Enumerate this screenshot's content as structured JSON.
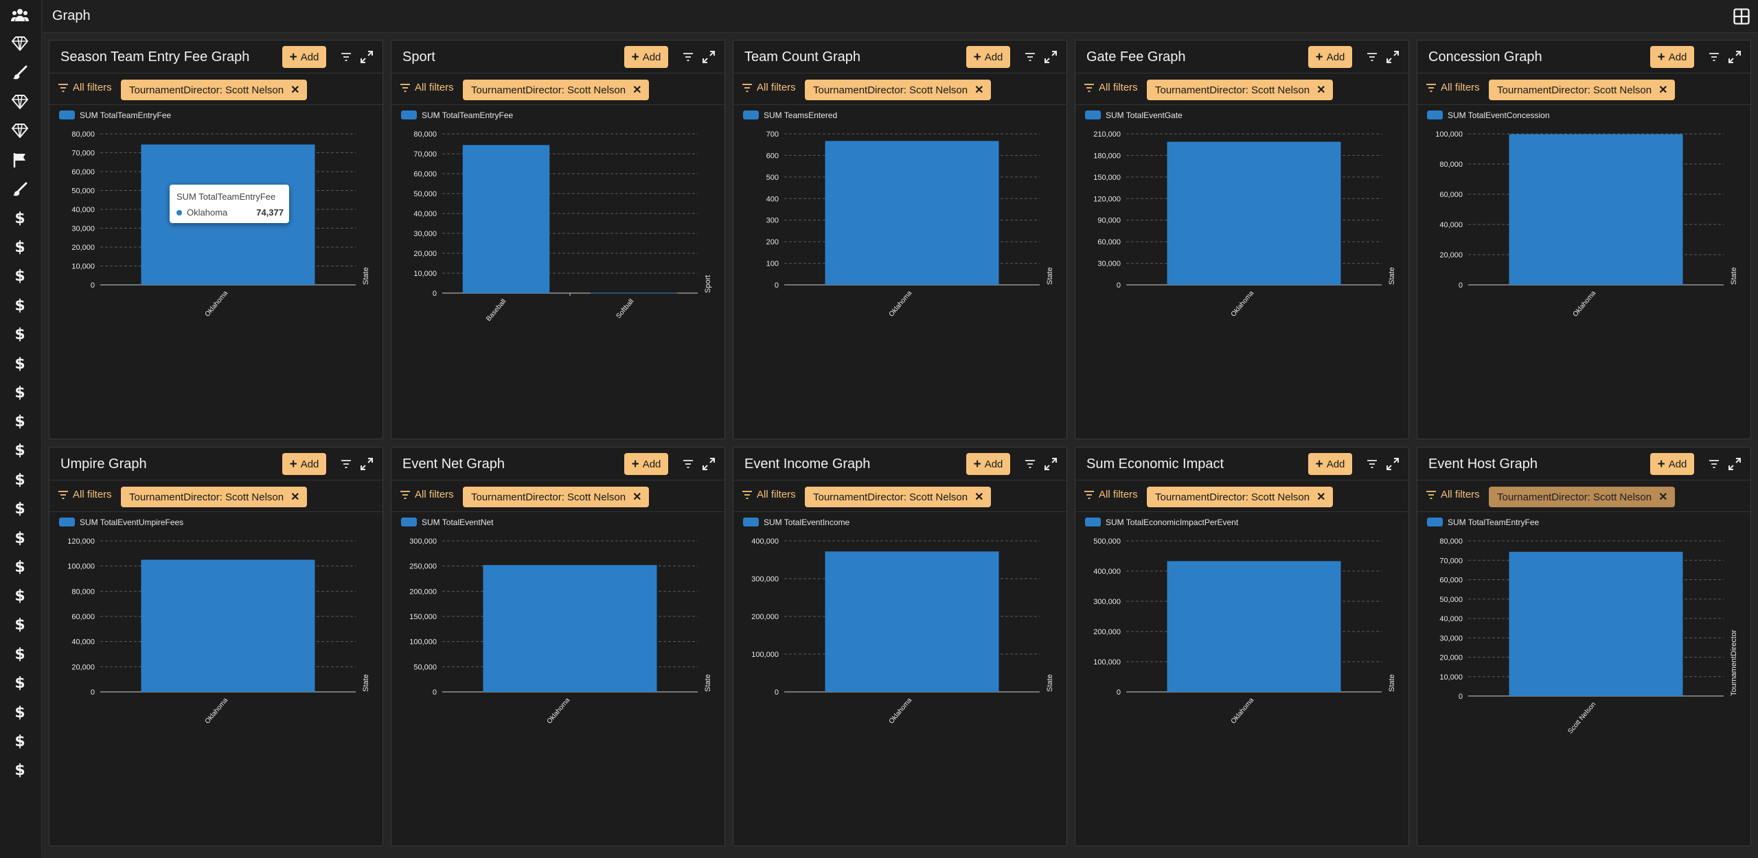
{
  "app": {
    "title": "Graph"
  },
  "sidebar": {
    "icons": [
      "users-icon",
      "diamond-icon",
      "brush-icon",
      "diamond-icon",
      "diamond-icon",
      "flag-icon",
      "brush-icon",
      "dollar-icon",
      "dollar-icon",
      "dollar-icon",
      "dollar-icon",
      "dollar-icon",
      "dollar-icon",
      "dollar-icon",
      "dollar-icon",
      "dollar-icon",
      "dollar-icon",
      "dollar-icon",
      "dollar-icon",
      "dollar-icon",
      "dollar-icon",
      "dollar-icon",
      "dollar-icon",
      "dollar-icon",
      "dollar-icon",
      "dollar-icon",
      "dollar-icon"
    ]
  },
  "common": {
    "add_label": "Add",
    "all_filters_label": "All filters",
    "filter_chip": "TournamentDirector: Scott Nelson"
  },
  "colors": {
    "accent": "#f7c27b",
    "bar": "#2c7fc7"
  },
  "tooltip": {
    "title": "SUM TotalTeamEntryFee",
    "label": "Oklahoma",
    "value": "74,377"
  },
  "panels": [
    {
      "title": "Season Team Entry Fee Graph",
      "chip_muted": false
    },
    {
      "title": "Sport",
      "chip_muted": false
    },
    {
      "title": "Team Count Graph",
      "chip_muted": false
    },
    {
      "title": "Gate Fee Graph",
      "chip_muted": false
    },
    {
      "title": "Concession Graph",
      "chip_muted": false
    },
    {
      "title": "Umpire Graph",
      "chip_muted": false
    },
    {
      "title": "Event Net Graph",
      "chip_muted": false
    },
    {
      "title": "Event Income Graph",
      "chip_muted": false
    },
    {
      "title": "Sum Economic Impact",
      "chip_muted": false
    },
    {
      "title": "Event Host Graph",
      "chip_muted": true
    }
  ],
  "chart_data": [
    {
      "type": "bar",
      "legend": "SUM TotalTeamEntryFee",
      "xlabel": "State",
      "categories": [
        "Oklahoma"
      ],
      "values": [
        74377
      ],
      "ylim": [
        0,
        80000
      ],
      "ticks": [
        "0",
        "10,000",
        "20,000",
        "30,000",
        "40,000",
        "50,000",
        "60,000",
        "70,000",
        "80,000"
      ]
    },
    {
      "type": "bar",
      "legend": "SUM TotalTeamEntryFee",
      "xlabel": "Sport",
      "categories": [
        "Baseball",
        "Softball"
      ],
      "values": [
        74377,
        150
      ],
      "ylim": [
        0,
        80000
      ],
      "ticks": [
        "0",
        "10,000",
        "20,000",
        "30,000",
        "40,000",
        "50,000",
        "60,000",
        "70,000",
        "80,000"
      ]
    },
    {
      "type": "bar",
      "legend": "SUM TeamsEntered",
      "xlabel": "State",
      "categories": [
        "Oklahoma"
      ],
      "values": [
        667
      ],
      "ylim": [
        0,
        700
      ],
      "ticks": [
        "0",
        "100",
        "200",
        "300",
        "400",
        "500",
        "600",
        "700"
      ]
    },
    {
      "type": "bar",
      "legend": "SUM TotalEventGate",
      "xlabel": "State",
      "categories": [
        "Oklahoma"
      ],
      "values": [
        199000
      ],
      "ylim": [
        0,
        210000
      ],
      "ticks": [
        "0",
        "30,000",
        "60,000",
        "90,000",
        "120,000",
        "150,000",
        "180,000",
        "210,000"
      ]
    },
    {
      "type": "bar",
      "legend": "SUM TotalEventConcession",
      "xlabel": "State",
      "categories": [
        "Oklahoma"
      ],
      "values": [
        99800
      ],
      "ylim": [
        0,
        100000
      ],
      "ticks": [
        "0",
        "20,000",
        "40,000",
        "60,000",
        "80,000",
        "100,000"
      ]
    },
    {
      "type": "bar",
      "legend": "SUM TotalEventUmpireFees",
      "xlabel": "State",
      "categories": [
        "Oklahoma"
      ],
      "values": [
        105000
      ],
      "ylim": [
        0,
        120000
      ],
      "ticks": [
        "0",
        "20,000",
        "40,000",
        "60,000",
        "80,000",
        "100,000",
        "120,000"
      ]
    },
    {
      "type": "bar",
      "legend": "SUM TotalEventNet",
      "xlabel": "State",
      "categories": [
        "Oklahoma"
      ],
      "values": [
        252000
      ],
      "ylim": [
        0,
        300000
      ],
      "ticks": [
        "0",
        "50,000",
        "100,000",
        "150,000",
        "200,000",
        "250,000",
        "300,000"
      ]
    },
    {
      "type": "bar",
      "legend": "SUM TotalEventIncome",
      "xlabel": "State",
      "categories": [
        "Oklahoma"
      ],
      "values": [
        372000
      ],
      "ylim": [
        0,
        400000
      ],
      "ticks": [
        "0",
        "100,000",
        "200,000",
        "300,000",
        "400,000"
      ]
    },
    {
      "type": "bar",
      "legend": "SUM TotalEconomicImpactPerEvent",
      "xlabel": "State",
      "categories": [
        "Oklahoma"
      ],
      "values": [
        433000
      ],
      "ylim": [
        0,
        500000
      ],
      "ticks": [
        "0",
        "100,000",
        "200,000",
        "300,000",
        "400,000",
        "500,000"
      ]
    },
    {
      "type": "bar",
      "legend": "SUM TotalTeamEntryFee",
      "xlabel": "TournamentDirector",
      "categories": [
        "Scott Nelson"
      ],
      "values": [
        74377
      ],
      "ylim": [
        0,
        80000
      ],
      "ticks": [
        "0",
        "10,000",
        "20,000",
        "30,000",
        "40,000",
        "50,000",
        "60,000",
        "70,000",
        "80,000"
      ]
    }
  ]
}
